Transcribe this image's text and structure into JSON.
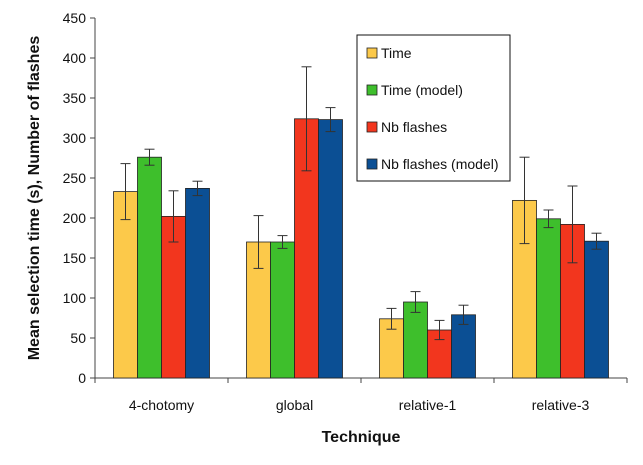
{
  "chart_data": {
    "type": "bar",
    "xlabel": "Technique",
    "ylabel": "Mean selection time (s), Number of flashes",
    "ylim": [
      0,
      450
    ],
    "yticks": [
      0,
      50,
      100,
      150,
      200,
      250,
      300,
      350,
      400,
      450
    ],
    "grid": false,
    "legend_position": "top-right",
    "categories": [
      "4-chotomy",
      "global",
      "relative-1",
      "relative-3"
    ],
    "series": [
      {
        "name": "Time",
        "color": "#FCC94A",
        "values": [
          233,
          170,
          74,
          222
        ],
        "error": [
          35,
          33,
          13,
          54
        ]
      },
      {
        "name": "Time (model)",
        "color": "#3EBF2C",
        "values": [
          276,
          170,
          95,
          199
        ],
        "error": [
          10,
          8,
          13,
          11
        ]
      },
      {
        "name": "Nb flashes",
        "color": "#F2361E",
        "values": [
          202,
          324,
          60,
          192
        ],
        "error": [
          32,
          65,
          12,
          48
        ]
      },
      {
        "name": "Nb flashes (model)",
        "color": "#0B4F94",
        "values": [
          237,
          323,
          79,
          171
        ],
        "error": [
          9,
          15,
          12,
          10
        ]
      }
    ]
  }
}
